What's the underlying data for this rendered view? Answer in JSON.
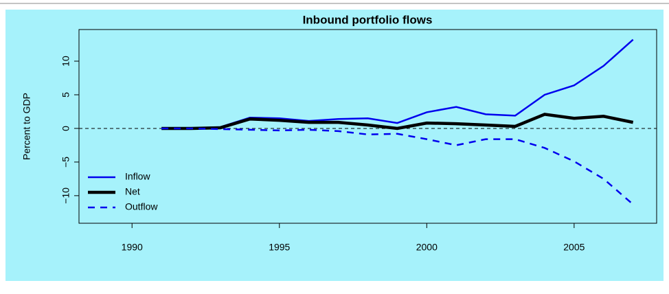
{
  "chart_data": {
    "type": "line",
    "title": "Inbound portfolio flows",
    "y_label": "Percent to GDP",
    "x": [
      1991,
      1992,
      1993,
      1994,
      1995,
      1996,
      1997,
      1998,
      1999,
      2000,
      2001,
      2002,
      2003,
      2004,
      2005,
      2006,
      2007
    ],
    "series": [
      {
        "name": "Inflow",
        "color": "#0000ee",
        "width": 2.5,
        "style": "solid",
        "values": [
          0,
          0.05,
          0.2,
          1.6,
          1.5,
          1.1,
          1.4,
          1.5,
          0.8,
          2.4,
          3.2,
          2.1,
          1.9,
          5.0,
          6.4,
          9.3,
          13.2
        ]
      },
      {
        "name": "Net",
        "color": "#000000",
        "width": 4.5,
        "style": "solid",
        "values": [
          0,
          0,
          0.1,
          1.4,
          1.2,
          0.9,
          0.9,
          0.5,
          0.0,
          0.8,
          0.7,
          0.5,
          0.3,
          2.1,
          1.5,
          1.8,
          0.9
        ]
      },
      {
        "name": "Outflow",
        "color": "#0000ee",
        "width": 2.5,
        "style": "dashed",
        "values": [
          0,
          0,
          -0.1,
          -0.2,
          -0.3,
          -0.2,
          -0.4,
          -0.9,
          -0.8,
          -1.6,
          -2.5,
          -1.6,
          -1.6,
          -2.9,
          -4.9,
          -7.5,
          -11.3
        ]
      }
    ],
    "xlim": [
      1988.2,
      2007.8
    ],
    "xticks": [
      1990,
      1995,
      2000,
      2005
    ],
    "ylim": [
      -14.1,
      14.7
    ],
    "yticks": [
      {
        "value": -10,
        "label": "−10"
      },
      {
        "value": -5,
        "label": "−5"
      },
      0,
      5,
      10
    ],
    "reference_line": 0,
    "legend": "bottom-left",
    "background": "#a6f2fb"
  }
}
